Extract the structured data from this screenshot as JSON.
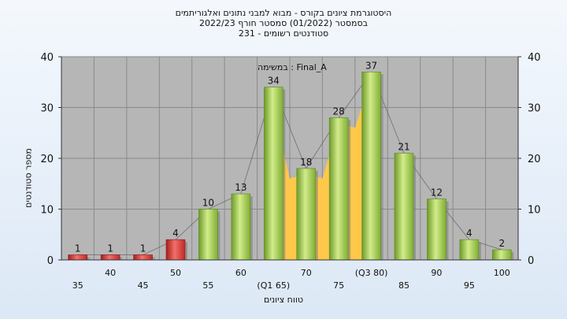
{
  "titles": {
    "line1": "היסטוגרמת ציונים בקורס - מבוא למבני נתונים ואלגוריתמים",
    "line2": "בסמסטר  (01/2022)  סמסטר חורף 2022/23",
    "line3": "סטודנטים רשומים - 231"
  },
  "chart_data": {
    "type": "bar",
    "title": "היסטוגרמת ציונים בקורס - מבוא למבני נתונים ואלגוריתמים",
    "ylabel": "מספר סטודנטים",
    "xlabel": "טווח ציונים",
    "ylim": [
      0,
      40
    ],
    "yticks": [
      0,
      10,
      20,
      30,
      40
    ],
    "grid": true,
    "annotation": "במשימה : Final_A",
    "categories": [
      "35",
      "40",
      "45",
      "50",
      "55",
      "60",
      "(Q1 65)",
      "70",
      "75",
      "(Q3 80)",
      "85",
      "90",
      "95",
      "100"
    ],
    "values": [
      1,
      1,
      1,
      4,
      10,
      13,
      34,
      18,
      28,
      37,
      21,
      12,
      4,
      2
    ],
    "label_rows": [
      "low",
      "high",
      "low",
      "high",
      "low",
      "high",
      "low",
      "high",
      "low",
      "high",
      "low",
      "high",
      "low",
      "high"
    ],
    "failing_categories": [
      "35",
      "40",
      "45",
      "50"
    ],
    "quartile_range_categories": [
      "(Q1 65)",
      "70",
      "75",
      "(Q3 80)"
    ],
    "colors": {
      "failing_bar": "#d9342e",
      "passing_bar": "#8cbf3e",
      "quartile_area": "#ffc84a",
      "plot_background": "#b6b6b6"
    }
  }
}
